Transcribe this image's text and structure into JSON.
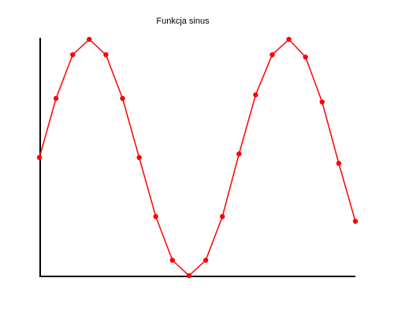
{
  "chart_data": {
    "type": "line",
    "title": "Funkcja sinus",
    "xlabel": "",
    "ylabel": "",
    "x": [
      0,
      1,
      2,
      3,
      4,
      5,
      6,
      7,
      8,
      9,
      10,
      11,
      12,
      13,
      14,
      15,
      16,
      17,
      18,
      19
    ],
    "series": [
      {
        "values": [
          0.0,
          0.5,
          0.87,
          1.0,
          0.87,
          0.5,
          0.0,
          -0.5,
          -0.87,
          -1.0,
          -0.87,
          -0.5,
          0.03,
          0.53,
          0.87,
          1.0,
          0.85,
          0.47,
          -0.05,
          -0.54
        ],
        "color": "#ff0000"
      }
    ],
    "xlim": [
      0,
      19
    ],
    "ylim": [
      -1,
      1
    ],
    "grid": false,
    "legend": "none",
    "axis_color": "#000000"
  }
}
